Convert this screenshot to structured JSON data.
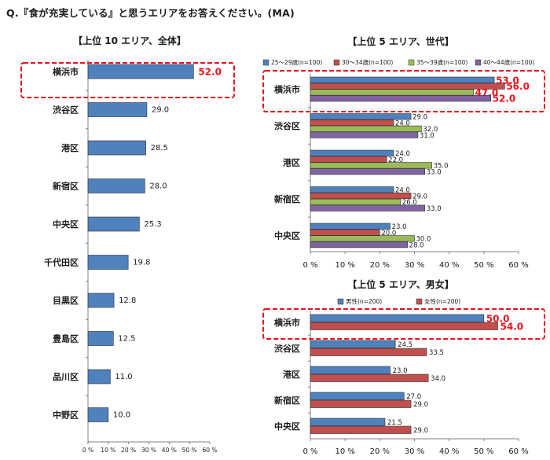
{
  "question": "Q.『食が充実している』と思うエリアをお答えください。(MA)",
  "colors": {
    "bar_blue": "#4f81bd",
    "bar_red": "#c0504d",
    "bar_green": "#9bbb59",
    "bar_purple": "#8064a2",
    "highlight": "#e8141c",
    "axis": "#7f7f7f",
    "grid": "#d9d9d9"
  },
  "chart_data": [
    {
      "type": "bar",
      "orientation": "horizontal",
      "title": "【上位 10 エリア、全体】",
      "categories": [
        "横浜市",
        "渋谷区",
        "港区",
        "新宿区",
        "中央区",
        "千代田区",
        "目黒区",
        "豊島区",
        "品川区",
        "中野区"
      ],
      "series": [
        {
          "name": "全体",
          "color": "#4f81bd",
          "values": [
            52.0,
            29.0,
            28.5,
            28.0,
            25.3,
            19.8,
            12.8,
            12.5,
            11.0,
            10.0
          ],
          "labels": [
            "52.0",
            "29.0",
            "28.5",
            "28.0",
            "25.3",
            "19.8",
            "12.8",
            "12.5",
            "11.0",
            "10.0"
          ]
        }
      ],
      "xlim": [
        0,
        60
      ],
      "ticks": [
        0,
        10,
        20,
        30,
        40,
        50,
        60
      ],
      "tick_labels": [
        "0 %",
        "10 %",
        "20 %",
        "30 %",
        "40 %",
        "50 %",
        "60 %"
      ],
      "highlight": "横浜市",
      "grid": false
    },
    {
      "type": "bar",
      "orientation": "horizontal",
      "title": "【上位 5 エリア、世代】",
      "categories": [
        "横浜市",
        "渋谷区",
        "港区",
        "新宿区",
        "中央区"
      ],
      "series": [
        {
          "name": "25～29歳(n=100)",
          "color": "#4f81bd",
          "values": [
            53.0,
            29.0,
            24.0,
            24.0,
            23.0
          ],
          "labels": [
            "53.0",
            "29.0",
            "24.0",
            "24.0",
            "23.0"
          ]
        },
        {
          "name": "30～34歳(n=100)",
          "color": "#c0504d",
          "values": [
            56.0,
            24.0,
            22.0,
            29.0,
            20.0
          ],
          "labels": [
            "56.0",
            "24.0",
            "22.0",
            "29.0",
            "20.0"
          ]
        },
        {
          "name": "35～39歳(n=100)",
          "color": "#9bbb59",
          "values": [
            47.0,
            32.0,
            35.0,
            26.0,
            30.0
          ],
          "labels": [
            "47.0",
            "32.0",
            "35.0",
            "26.0",
            "30.0"
          ]
        },
        {
          "name": "40～44歳(n=100)",
          "color": "#8064a2",
          "values": [
            52.0,
            31.0,
            33.0,
            33.0,
            28.0
          ],
          "labels": [
            "52.0",
            "31.0",
            "33.0",
            "33.0",
            "28.0"
          ]
        }
      ],
      "xlim": [
        0,
        60
      ],
      "ticks": [
        0,
        10,
        20,
        30,
        40,
        50,
        60
      ],
      "tick_labels": [
        "0 %",
        "10 %",
        "20 %",
        "30 %",
        "40 %",
        "50 %",
        "60 %"
      ],
      "legend": "top",
      "highlight": "横浜市",
      "grid": false
    },
    {
      "type": "bar",
      "orientation": "horizontal",
      "title": "【上位 5 エリア、男女】",
      "categories": [
        "横浜市",
        "渋谷区",
        "港区",
        "新宿区",
        "中央区"
      ],
      "series": [
        {
          "name": "男性(n=200)",
          "color": "#4f81bd",
          "values": [
            50.0,
            24.5,
            23.0,
            27.0,
            21.5
          ],
          "labels": [
            "50.0",
            "24.5",
            "23.0",
            "27.0",
            "21.5"
          ]
        },
        {
          "name": "女性(n=200)",
          "color": "#c0504d",
          "values": [
            54.0,
            33.5,
            34.0,
            29.0,
            29.0
          ],
          "labels": [
            "54.0",
            "33.5",
            "34.0",
            "29.0",
            "29.0"
          ]
        }
      ],
      "xlim": [
        0,
        60
      ],
      "ticks": [
        0,
        10,
        20,
        30,
        40,
        50,
        60
      ],
      "tick_labels": [
        "0 %",
        "10 %",
        "20 %",
        "30 %",
        "40 %",
        "50 %",
        "60 %"
      ],
      "legend": "top",
      "highlight": "横浜市",
      "grid": false
    }
  ]
}
